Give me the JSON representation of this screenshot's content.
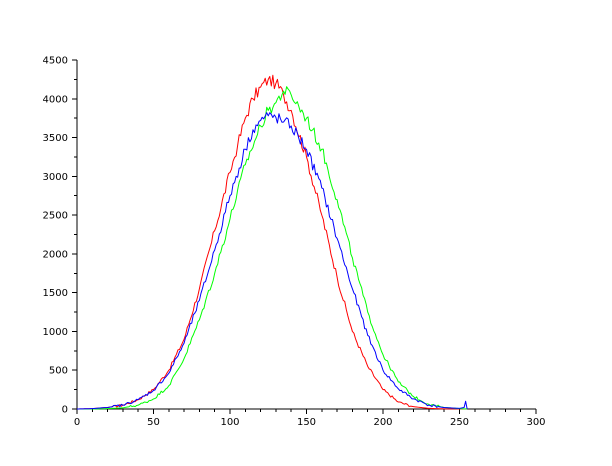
{
  "chart_data": {
    "type": "line",
    "title": "",
    "xlabel": "",
    "ylabel": "",
    "xlim": [
      0,
      300
    ],
    "ylim": [
      0,
      4500
    ],
    "x_ticks": [
      0,
      50,
      100,
      150,
      200,
      250,
      300
    ],
    "x_tick_labels": [
      "0",
      "50",
      "100",
      "150",
      "200",
      "250",
      "300"
    ],
    "y_ticks": [
      0,
      500,
      1000,
      1500,
      2000,
      2500,
      3000,
      3500,
      4000,
      4500
    ],
    "y_tick_labels": [
      "0",
      "500",
      "1000",
      "1500",
      "2000",
      "2500",
      "3000",
      "3500",
      "4000",
      "4500"
    ],
    "grid": false,
    "legend": false,
    "series": [
      {
        "color": "#ff0000",
        "x": [
          0,
          10,
          20,
          30,
          40,
          50,
          60,
          70,
          80,
          90,
          100,
          105,
          110,
          115,
          120,
          125,
          130,
          135,
          140,
          150,
          160,
          170,
          180,
          190,
          200,
          210,
          220,
          230,
          240,
          255
        ],
        "y": [
          0,
          5,
          20,
          50,
          120,
          250,
          500,
          900,
          1550,
          2300,
          3050,
          3400,
          3750,
          4000,
          4150,
          4250,
          4200,
          4050,
          3850,
          3250,
          2500,
          1700,
          1000,
          550,
          250,
          90,
          30,
          8,
          2,
          0
        ]
      },
      {
        "color": "#00ff00",
        "x": [
          0,
          10,
          20,
          30,
          40,
          50,
          60,
          70,
          80,
          90,
          100,
          110,
          120,
          125,
          130,
          135,
          140,
          145,
          150,
          160,
          170,
          180,
          190,
          200,
          210,
          220,
          230,
          240,
          250,
          255
        ],
        "y": [
          0,
          0,
          5,
          15,
          50,
          130,
          300,
          650,
          1150,
          1750,
          2450,
          3150,
          3650,
          3850,
          3950,
          4100,
          4050,
          3900,
          3750,
          3350,
          2700,
          1950,
          1250,
          700,
          350,
          160,
          60,
          20,
          5,
          0
        ]
      },
      {
        "color": "#0000ff",
        "x": [
          0,
          10,
          20,
          30,
          40,
          50,
          60,
          70,
          80,
          90,
          100,
          110,
          115,
          120,
          125,
          130,
          135,
          140,
          150,
          160,
          170,
          180,
          190,
          200,
          210,
          220,
          230,
          240,
          250,
          253,
          254,
          255
        ],
        "y": [
          0,
          5,
          20,
          50,
          120,
          240,
          460,
          850,
          1400,
          2050,
          2750,
          3350,
          3600,
          3720,
          3780,
          3760,
          3700,
          3650,
          3350,
          2850,
          2200,
          1550,
          950,
          500,
          260,
          130,
          50,
          18,
          8,
          20,
          100,
          0
        ]
      }
    ]
  }
}
